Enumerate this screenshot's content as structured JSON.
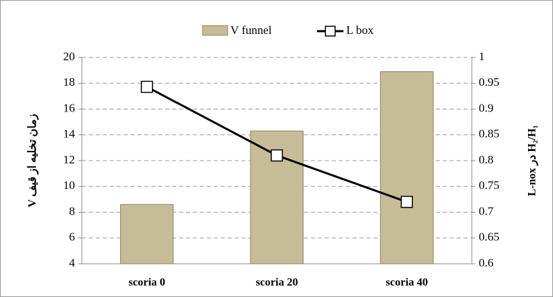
{
  "chart_data": {
    "type": "bar-line",
    "categories": [
      "scoria 0",
      "scoria 20",
      "scoria 40"
    ],
    "series": [
      {
        "name": "V funnel",
        "type": "bar",
        "color": "#c6bc98",
        "values": [
          8.6,
          14.3,
          18.9
        ]
      },
      {
        "name": "L box",
        "type": "line",
        "axis": "y2",
        "color": "#000000",
        "values": [
          0.943,
          0.81,
          0.72
        ]
      }
    ],
    "ylabel": "V زمان تخلیه از قیف",
    "y2label": "L-nox در H₂/H₁",
    "ylim": [
      4,
      20
    ],
    "yticks": [
      4,
      6,
      8,
      10,
      12,
      14,
      16,
      18,
      20
    ],
    "y2lim": [
      0.6,
      1
    ],
    "y2ticks": [
      0.6,
      0.65,
      0.7,
      0.75,
      0.8,
      0.85,
      0.9,
      0.95,
      1
    ],
    "grid": true,
    "legend": "top"
  }
}
